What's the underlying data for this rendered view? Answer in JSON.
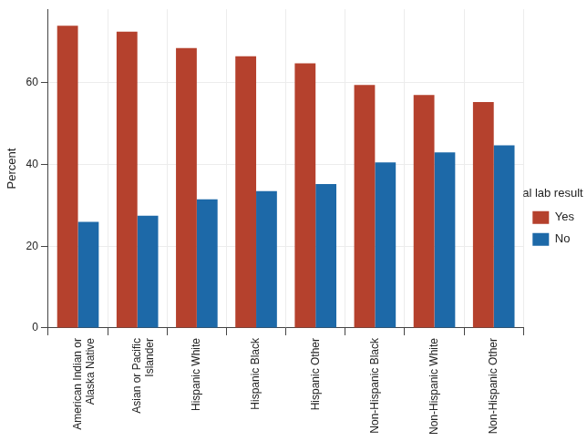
{
  "chart_data": {
    "type": "bar",
    "categories": [
      [
        "American Indian or",
        "Alaska Native"
      ],
      [
        "Asian or Pacific",
        "Islander"
      ],
      "Hispanic White",
      "Hispanic Black",
      "Hispanic Other",
      "Non-Hispanic Black",
      "Non-Hispanic White",
      "Non-Hispanic Other"
    ],
    "series": [
      {
        "name": "Yes",
        "color": "#b5412d",
        "values": [
          74,
          72.5,
          68.5,
          66.5,
          64.8,
          59.5,
          57,
          55.3
        ]
      },
      {
        "name": "No",
        "color": "#1d69a8",
        "values": [
          26,
          27.5,
          31.5,
          33.5,
          35.2,
          40.5,
          43,
          44.7
        ]
      }
    ],
    "y_label": "Percent",
    "legend_title": "Abnormal lab result present",
    "ylim": [
      0,
      78
    ],
    "yticks": [
      0,
      20,
      40,
      60
    ],
    "grid": true,
    "legend": "right"
  }
}
